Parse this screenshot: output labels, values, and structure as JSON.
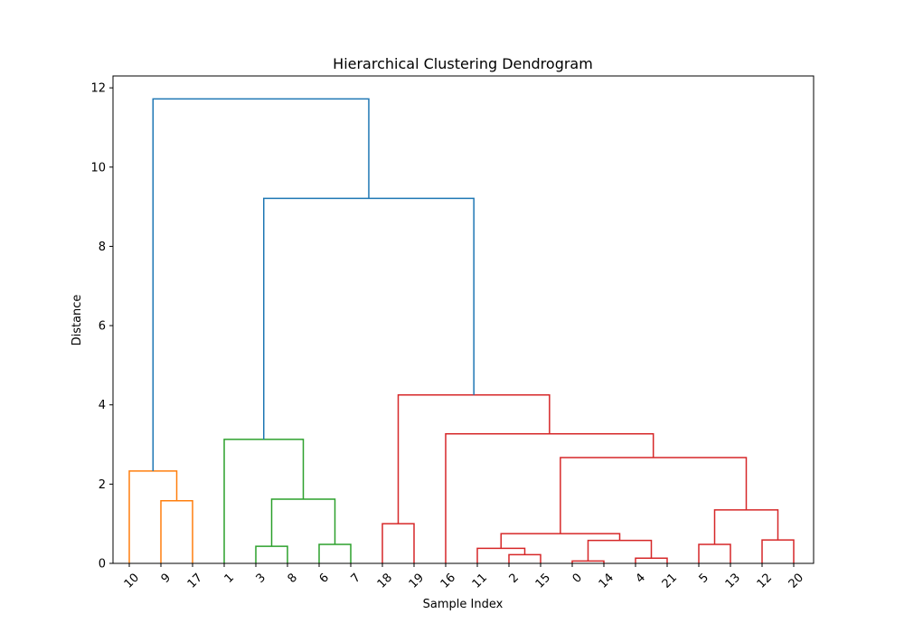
{
  "chart_data": {
    "type": "dendrogram",
    "title": "Hierarchical Clustering Dendrogram",
    "xlabel": "Sample Index",
    "ylabel": "Distance",
    "ylim": [
      0,
      12.3
    ],
    "yticks": [
      0,
      2,
      4,
      6,
      8,
      10,
      12
    ],
    "leaf_order": [
      "10",
      "9",
      "17",
      "1",
      "3",
      "8",
      "6",
      "7",
      "18",
      "19",
      "16",
      "11",
      "2",
      "15",
      "0",
      "14",
      "4",
      "21",
      "5",
      "13",
      "12",
      "20"
    ],
    "above_threshold_color": "#1f77b4",
    "merges": [
      {
        "id": "m_9_17",
        "left": "9",
        "right": "17",
        "height": 1.58,
        "color": "#ff7f0e"
      },
      {
        "id": "m_10_9_17",
        "left": "10",
        "right": "m_9_17",
        "height": 2.33,
        "color": "#ff7f0e"
      },
      {
        "id": "m_3_8",
        "left": "3",
        "right": "8",
        "height": 0.43,
        "color": "#2ca02c"
      },
      {
        "id": "m_6_7",
        "left": "6",
        "right": "7",
        "height": 0.48,
        "color": "#2ca02c"
      },
      {
        "id": "m_3868",
        "left": "m_3_8",
        "right": "m_6_7",
        "height": 1.62,
        "color": "#2ca02c"
      },
      {
        "id": "m_green",
        "left": "1",
        "right": "m_3868",
        "height": 3.13,
        "color": "#2ca02c"
      },
      {
        "id": "m_18_19",
        "left": "18",
        "right": "19",
        "height": 1.0,
        "color": "#d62728"
      },
      {
        "id": "m_2_15",
        "left": "2",
        "right": "15",
        "height": 0.22,
        "color": "#d62728"
      },
      {
        "id": "m_11_2_15",
        "left": "11",
        "right": "m_2_15",
        "height": 0.38,
        "color": "#d62728"
      },
      {
        "id": "m_0_14",
        "left": "0",
        "right": "14",
        "height": 0.06,
        "color": "#d62728"
      },
      {
        "id": "m_4_21",
        "left": "4",
        "right": "21",
        "height": 0.13,
        "color": "#d62728"
      },
      {
        "id": "m_0_14_4_21",
        "left": "m_0_14",
        "right": "m_4_21",
        "height": 0.58,
        "color": "#d62728"
      },
      {
        "id": "m_mid",
        "left": "m_11_2_15",
        "right": "m_0_14_4_21",
        "height": 0.75,
        "color": "#d62728"
      },
      {
        "id": "m_5_13",
        "left": "5",
        "right": "13",
        "height": 0.48,
        "color": "#d62728"
      },
      {
        "id": "m_12_20",
        "left": "12",
        "right": "20",
        "height": 0.59,
        "color": "#d62728"
      },
      {
        "id": "m_right",
        "left": "m_5_13",
        "right": "m_12_20",
        "height": 1.35,
        "color": "#d62728"
      },
      {
        "id": "m_redcore",
        "left": "m_mid",
        "right": "m_right",
        "height": 2.67,
        "color": "#d62728"
      },
      {
        "id": "m_16",
        "left": "16",
        "right": "m_redcore",
        "height": 3.27,
        "color": "#d62728"
      },
      {
        "id": "m_red",
        "left": "m_18_19",
        "right": "m_16",
        "height": 4.25,
        "color": "#d62728"
      },
      {
        "id": "m_green_red",
        "left": "m_green",
        "right": "m_red",
        "height": 9.21,
        "color": "#1f77b4"
      },
      {
        "id": "m_root",
        "left": "m_10_9_17",
        "right": "m_green_red",
        "height": 11.72,
        "color": "#1f77b4"
      }
    ]
  }
}
